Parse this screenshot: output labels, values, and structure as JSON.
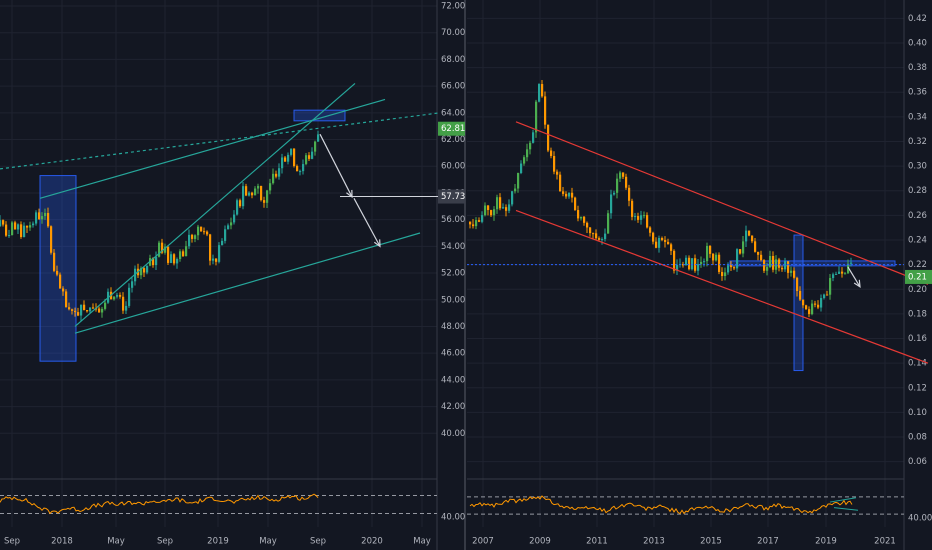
{
  "colors": {
    "background": "#131722",
    "grid": "#1f2330",
    "divider": "#363a45",
    "axis_text": "#b2b5be",
    "candle_up": "#26a69a",
    "candle_up_alt": "#4caf50",
    "candle_down": "#ff9800",
    "trend_teal": "#26a69a",
    "channel_red": "#e53935",
    "zone_blue": "#2962ff",
    "arrow": "#d1d4dc",
    "rsi_line": "#ff9800",
    "rsi_band": "#9598a1",
    "price_tag_green": "#43a047",
    "price_tag_grey": "#3a3e4a",
    "text_on_tag": "#ffffff"
  },
  "chart_data": [
    {
      "type": "candlestick",
      "title": "",
      "ylim": [
        38,
        72
      ],
      "y_ticks": [
        "72.00",
        "70.00",
        "68.00",
        "66.00",
        "64.00",
        "62.00",
        "60.00",
        "58.00",
        "56.00",
        "54.00",
        "52.00",
        "50.00",
        "48.00",
        "46.00",
        "44.00",
        "42.00",
        "40.00"
      ],
      "x_ticks": [
        "Sep",
        "2018",
        "May",
        "Sep",
        "2019",
        "May",
        "Sep",
        "2020",
        "May"
      ],
      "last_price": "62.81",
      "target_price": "57.73",
      "anchor_close": [
        [
          0,
          55.5
        ],
        [
          6,
          54.8
        ],
        [
          12,
          55.8
        ],
        [
          20,
          55.0
        ],
        [
          28,
          55.6
        ],
        [
          36,
          56.2
        ],
        [
          42,
          56.6
        ],
        [
          48,
          55.5
        ],
        [
          54,
          52.0
        ],
        [
          60,
          50.8
        ],
        [
          66,
          49.4
        ],
        [
          72,
          48.6
        ],
        [
          78,
          49.2
        ],
        [
          84,
          48.9
        ],
        [
          90,
          49.5
        ],
        [
          96,
          49.8
        ],
        [
          102,
          49.4
        ],
        [
          108,
          50.4
        ],
        [
          114,
          50.8
        ],
        [
          120,
          49.8
        ],
        [
          126,
          49.6
        ],
        [
          132,
          51.2
        ],
        [
          138,
          52.4
        ],
        [
          144,
          52.1
        ],
        [
          150,
          52.6
        ],
        [
          156,
          53.5
        ],
        [
          162,
          53.9
        ],
        [
          168,
          53.2
        ],
        [
          174,
          52.8
        ],
        [
          180,
          53.4
        ],
        [
          186,
          54.2
        ],
        [
          192,
          54.8
        ],
        [
          198,
          55.0
        ],
        [
          204,
          55.6
        ],
        [
          210,
          53.2
        ],
        [
          216,
          52.8
        ],
        [
          222,
          54.4
        ],
        [
          228,
          55.5
        ],
        [
          234,
          56.5
        ],
        [
          240,
          57.6
        ],
        [
          246,
          58.4
        ],
        [
          252,
          57.8
        ],
        [
          258,
          58.6
        ],
        [
          264,
          57.4
        ],
        [
          270,
          58.2
        ],
        [
          276,
          59.8
        ],
        [
          282,
          60.5
        ],
        [
          288,
          61.2
        ],
        [
          294,
          60.5
        ],
        [
          300,
          59.8
        ],
        [
          306,
          60.6
        ],
        [
          312,
          61.2
        ],
        [
          318,
          62.8
        ]
      ],
      "resistance_line": [
        [
          0,
          59.8
        ],
        [
          440,
          64.0
        ]
      ],
      "upper_channel": [
        [
          40,
          57.6
        ],
        [
          385,
          65.0
        ]
      ],
      "lower_channel": [
        [
          75,
          47.5
        ],
        [
          420,
          55.0
        ]
      ],
      "steep_trend": [
        [
          75,
          48.0
        ],
        [
          355,
          66.2
        ]
      ],
      "highlight_zones": [
        {
          "x0": 40,
          "x1": 76,
          "y0": 45.4,
          "y1": 59.3
        },
        {
          "x0": 294,
          "x1": 345,
          "y0": 63.4,
          "y1": 64.2
        }
      ],
      "projection_arrows": [
        {
          "from": [
            320,
            62.4
          ],
          "to": [
            352,
            57.7
          ]
        },
        {
          "from": [
            354,
            57.6
          ],
          "to": [
            380,
            54.0
          ]
        }
      ],
      "target_line": [
        [
          340,
          57.73
        ],
        [
          440,
          57.73
        ]
      ],
      "rsi": {
        "y_tick": "40.00",
        "upper_band": 70,
        "lower_band": 30,
        "values": [
          58,
          64,
          66,
          62,
          55,
          46,
          38,
          33,
          36,
          42,
          40,
          38,
          44,
          47,
          50,
          53,
          49,
          52,
          55,
          51,
          56,
          58,
          54,
          60,
          62,
          56,
          53,
          58,
          61,
          64,
          60,
          57,
          55,
          61,
          63,
          66,
          62,
          60,
          64,
          68,
          66,
          63,
          67,
          70
        ]
      }
    },
    {
      "type": "candlestick",
      "title": "",
      "ylim": [
        0.05,
        0.43
      ],
      "y_ticks": [
        "0.42",
        "0.40",
        "0.38",
        "0.36",
        "0.34",
        "0.32",
        "0.30",
        "0.28",
        "0.26",
        "0.24",
        "0.22",
        "0.20",
        "0.18",
        "0.16",
        "0.14",
        "0.12",
        "0.10",
        "0.08",
        "0.06"
      ],
      "x_ticks": [
        "2007",
        "2009",
        "2011",
        "2013",
        "2015",
        "2017",
        "2019",
        "2021"
      ],
      "last_price": "0.21",
      "reference_price": "0.22",
      "anchor_close": [
        [
          470,
          0.255
        ],
        [
          478,
          0.258
        ],
        [
          484,
          0.268
        ],
        [
          492,
          0.262
        ],
        [
          500,
          0.272
        ],
        [
          508,
          0.268
        ],
        [
          516,
          0.285
        ],
        [
          522,
          0.3
        ],
        [
          528,
          0.312
        ],
        [
          534,
          0.338
        ],
        [
          540,
          0.365
        ],
        [
          546,
          0.322
        ],
        [
          552,
          0.305
        ],
        [
          560,
          0.285
        ],
        [
          568,
          0.275
        ],
        [
          576,
          0.262
        ],
        [
          584,
          0.255
        ],
        [
          592,
          0.248
        ],
        [
          600,
          0.238
        ],
        [
          606,
          0.252
        ],
        [
          612,
          0.275
        ],
        [
          618,
          0.298
        ],
        [
          624,
          0.285
        ],
        [
          630,
          0.262
        ],
        [
          636,
          0.255
        ],
        [
          642,
          0.262
        ],
        [
          648,
          0.25
        ],
        [
          656,
          0.238
        ],
        [
          664,
          0.24
        ],
        [
          670,
          0.228
        ],
        [
          678,
          0.215
        ],
        [
          686,
          0.222
        ],
        [
          694,
          0.218
        ],
        [
          702,
          0.224
        ],
        [
          710,
          0.232
        ],
        [
          718,
          0.218
        ],
        [
          726,
          0.212
        ],
        [
          734,
          0.222
        ],
        [
          742,
          0.238
        ],
        [
          750,
          0.248
        ],
        [
          756,
          0.232
        ],
        [
          762,
          0.218
        ],
        [
          770,
          0.222
        ],
        [
          778,
          0.218
        ],
        [
          786,
          0.22
        ],
        [
          794,
          0.205
        ],
        [
          800,
          0.185
        ],
        [
          806,
          0.178
        ],
        [
          812,
          0.182
        ],
        [
          818,
          0.18
        ],
        [
          824,
          0.198
        ],
        [
          830,
          0.205
        ],
        [
          836,
          0.21
        ],
        [
          842,
          0.212
        ],
        [
          848,
          0.218
        ],
        [
          852,
          0.214
        ]
      ],
      "channel_upper": [
        [
          516,
          0.336
        ],
        [
          928,
          0.204
        ]
      ],
      "channel_lower": [
        [
          516,
          0.264
        ],
        [
          928,
          0.14
        ]
      ],
      "highlight_zones": [
        {
          "x0": 730,
          "x1": 895,
          "y0": 0.219,
          "y1": 0.223
        },
        {
          "x0": 794,
          "x1": 803,
          "y0": 0.134,
          "y1": 0.244
        }
      ],
      "projection_arrows": [
        {
          "from": [
            848,
            0.218
          ],
          "to": [
            860,
            0.202
          ]
        }
      ],
      "rsi": {
        "y_tick": "40.00",
        "upper_band": 70,
        "lower_band": 30,
        "values": [
          48,
          52,
          55,
          50,
          58,
          62,
          60,
          66,
          72,
          64,
          56,
          48,
          44,
          40,
          46,
          42,
          38,
          45,
          50,
          54,
          46,
          42,
          48,
          44,
          38,
          35,
          40,
          43,
          46,
          40,
          38,
          42,
          48,
          52,
          46,
          44,
          50,
          47,
          42,
          38,
          36,
          44,
          50,
          54,
          58,
          56
        ],
        "divergence_up": [
          [
            830,
            58
          ],
          [
            856,
            68
          ]
        ],
        "divergence_down": [
          [
            834,
            45
          ],
          [
            858,
            39
          ]
        ]
      }
    }
  ]
}
